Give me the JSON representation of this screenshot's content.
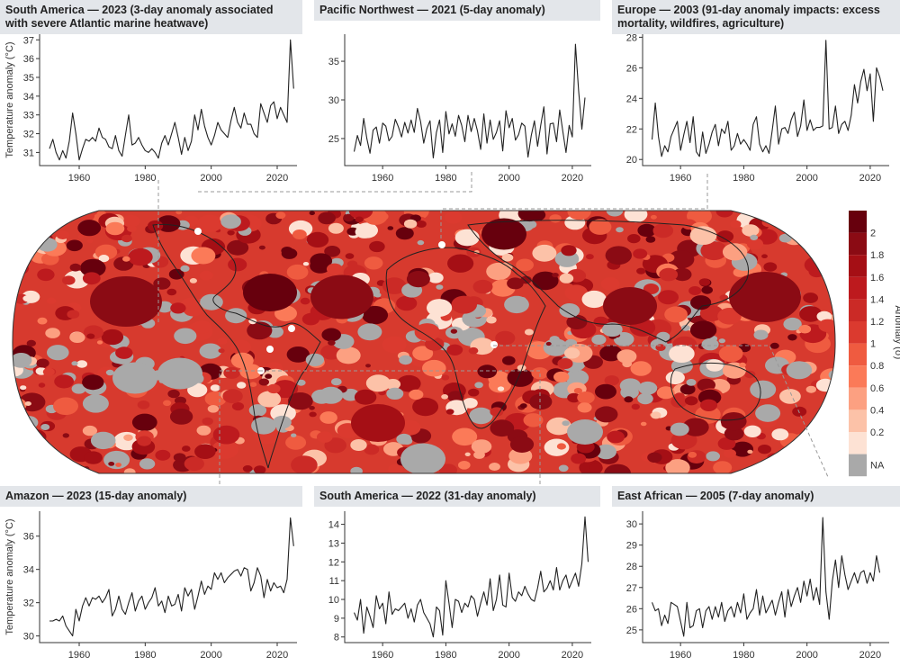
{
  "chart_data": [
    {
      "type": "line",
      "title": "South America — 2023 (3-day anomaly associated with severe Atlantic marine heatwave)",
      "ylabel": "Temperature anomaly (°C)",
      "xlim": [
        1948,
        2026
      ],
      "ylim": [
        30.3,
        37.3
      ],
      "xticks": [
        1960,
        1980,
        2000,
        2020
      ],
      "yticks": [
        31,
        32,
        33,
        34,
        35,
        36,
        37
      ],
      "x_start": 1951,
      "values": [
        31.2,
        31.7,
        31.0,
        30.6,
        31.1,
        30.7,
        31.6,
        33.1,
        32.0,
        30.6,
        31.2,
        31.7,
        31.6,
        31.8,
        31.6,
        32.3,
        31.8,
        31.7,
        31.3,
        31.2,
        31.9,
        31.1,
        30.8,
        31.9,
        33.0,
        31.4,
        31.5,
        31.8,
        31.4,
        31.1,
        31.0,
        31.2,
        31.0,
        30.7,
        31.5,
        31.9,
        31.4,
        32.0,
        32.6,
        31.8,
        30.9,
        31.8,
        31.1,
        31.6,
        33.0,
        32.2,
        33.3,
        32.4,
        31.8,
        31.4,
        31.9,
        32.6,
        32.2,
        32.0,
        31.8,
        32.7,
        33.4,
        32.6,
        32.3,
        33.1,
        32.5,
        32.5,
        32.0,
        31.8,
        33.6,
        33.1,
        32.6,
        33.5,
        33.7,
        32.8,
        33.4,
        33.0,
        32.6,
        37.0,
        34.4
      ]
    },
    {
      "type": "line",
      "title": "Pacific Northwest — 2021 (5-day anomaly)",
      "ylabel": "",
      "xlim": [
        1948,
        2026
      ],
      "ylim": [
        21.5,
        38.5
      ],
      "xticks": [
        1960,
        1980,
        2000,
        2020
      ],
      "yticks": [
        25,
        30,
        35
      ],
      "x_start": 1951,
      "values": [
        23.3,
        25.4,
        24.1,
        27.6,
        25.0,
        23.1,
        26.1,
        26.5,
        24.4,
        27.0,
        26.6,
        24.7,
        25.3,
        27.5,
        26.5,
        25.2,
        27.1,
        25.7,
        27.4,
        25.8,
        28.9,
        27.2,
        24.4,
        26.3,
        27.3,
        22.5,
        25.8,
        27.4,
        23.2,
        28.5,
        25.6,
        26.9,
        25.3,
        28.0,
        26.7,
        24.6,
        28.0,
        25.9,
        27.6,
        26.0,
        23.6,
        28.2,
        24.4,
        27.4,
        24.9,
        25.8,
        27.3,
        23.4,
        28.6,
        26.4,
        27.6,
        24.8,
        25.5,
        27.0,
        26.6,
        22.6,
        25.4,
        27.3,
        24.0,
        26.7,
        29.1,
        23.0,
        26.9,
        27.0,
        24.6,
        28.7,
        25.9,
        23.2,
        26.7,
        25.2,
        37.2,
        31.2,
        26.2,
        30.3
      ]
    },
    {
      "type": "line",
      "title": "Europe — 2003 (91-day anomaly impacts: excess mortality, wildfires, agriculture)",
      "ylabel": "",
      "xlim": [
        1948,
        2026
      ],
      "ylim": [
        19.6,
        28.2
      ],
      "xticks": [
        1960,
        1980,
        2000,
        2020
      ],
      "yticks": [
        20,
        22,
        24,
        26,
        28
      ],
      "x_start": 1951,
      "values": [
        21.3,
        23.7,
        21.5,
        20.2,
        20.9,
        20.5,
        21.5,
        22.0,
        22.5,
        20.6,
        21.6,
        22.5,
        21.1,
        22.8,
        20.5,
        20.2,
        21.8,
        20.4,
        21.0,
        21.8,
        22.3,
        20.9,
        22.0,
        21.7,
        22.5,
        20.6,
        20.9,
        21.7,
        21.0,
        21.3,
        21.0,
        20.6,
        22.3,
        22.8,
        21.0,
        20.5,
        20.9,
        20.4,
        21.9,
        23.5,
        21.0,
        22.0,
        22.1,
        21.7,
        22.6,
        23.1,
        21.5,
        22.2,
        23.9,
        21.9,
        22.6,
        21.9,
        22.1,
        22.1,
        22.2,
        27.8,
        22.0,
        22.1,
        23.5,
        21.7,
        22.3,
        22.5,
        21.9,
        22.9,
        24.9,
        23.7,
        25.1,
        25.9,
        24.5,
        25.6,
        22.5,
        26.0,
        25.4,
        24.5
      ]
    },
    {
      "type": "line",
      "title": "Amazon — 2023 (15-day anomaly)",
      "ylabel": "Temperature anomaly (°C)",
      "xlim": [
        1948,
        2026
      ],
      "ylim": [
        29.6,
        37.5
      ],
      "xticks": [
        1960,
        1980,
        2000,
        2020
      ],
      "yticks": [
        30,
        32,
        34,
        36
      ],
      "x_start": 1951,
      "values": [
        30.9,
        30.9,
        31.0,
        30.9,
        31.2,
        30.6,
        30.3,
        30.0,
        31.6,
        30.9,
        31.8,
        32.3,
        31.8,
        32.3,
        32.2,
        32.4,
        32.0,
        32.3,
        32.8,
        31.2,
        31.6,
        32.4,
        31.6,
        31.3,
        32.0,
        32.6,
        31.5,
        32.1,
        32.4,
        31.6,
        32.0,
        32.3,
        32.9,
        31.8,
        32.1,
        31.4,
        32.4,
        31.8,
        31.9,
        32.5,
        31.5,
        32.9,
        32.4,
        32.8,
        31.6,
        32.4,
        33.3,
        32.5,
        33.0,
        32.8,
        33.8,
        33.4,
        33.8,
        33.2,
        33.5,
        33.7,
        33.9,
        34.0,
        33.6,
        34.1,
        34.0,
        32.7,
        33.2,
        34.1,
        33.6,
        32.3,
        33.4,
        32.7,
        33.2,
        32.9,
        33.0,
        32.6,
        33.4,
        37.1,
        35.4
      ]
    },
    {
      "type": "line",
      "title": "South America — 2022 (31-day anomaly)",
      "ylabel": "",
      "xlim": [
        1948,
        2026
      ],
      "ylim": [
        7.7,
        14.7
      ],
      "xticks": [
        1960,
        1980,
        2000,
        2020
      ],
      "yticks": [
        8,
        9,
        10,
        11,
        12,
        13,
        14
      ],
      "x_start": 1951,
      "values": [
        9.3,
        8.9,
        10.0,
        8.2,
        9.6,
        9.1,
        8.5,
        10.2,
        9.5,
        9.8,
        8.7,
        10.4,
        9.2,
        9.5,
        9.4,
        9.6,
        9.8,
        9.0,
        9.5,
        8.8,
        9.7,
        10.0,
        9.3,
        9.0,
        8.7,
        8.0,
        9.6,
        9.4,
        8.1,
        11.0,
        9.8,
        8.5,
        10.0,
        9.9,
        9.3,
        9.8,
        9.6,
        10.2,
        10.0,
        9.1,
        9.8,
        10.4,
        9.7,
        11.1,
        9.4,
        10.0,
        11.3,
        9.7,
        9.6,
        11.4,
        10.1,
        9.9,
        10.4,
        10.2,
        10.7,
        10.3,
        10.0,
        9.9,
        10.6,
        11.5,
        10.4,
        10.6,
        11.0,
        10.5,
        11.7,
        10.5,
        11.0,
        11.3,
        10.6,
        11.0,
        11.4,
        10.7,
        11.9,
        14.4,
        12.0
      ]
    },
    {
      "type": "line",
      "title": "East African — 2005 (7-day anomaly)",
      "ylabel": "",
      "xlim": [
        1948,
        2026
      ],
      "ylim": [
        24.4,
        30.6
      ],
      "xticks": [
        1960,
        1980,
        2000,
        2020
      ],
      "yticks": [
        25,
        26,
        27,
        28,
        29,
        30
      ],
      "x_start": 1951,
      "values": [
        26.3,
        25.9,
        26.0,
        25.2,
        25.7,
        25.3,
        26.3,
        26.2,
        26.1,
        25.4,
        24.7,
        26.3,
        25.1,
        25.2,
        25.9,
        26.0,
        25.1,
        25.9,
        26.1,
        25.5,
        26.1,
        25.6,
        26.3,
        25.4,
        25.9,
        26.1,
        25.6,
        26.3,
        25.8,
        26.7,
        25.5,
        25.8,
        26.0,
        26.9,
        25.7,
        26.6,
        25.8,
        26.1,
        26.4,
        25.7,
        26.3,
        26.8,
        25.6,
        26.9,
        26.1,
        26.6,
        27.0,
        26.3,
        27.3,
        26.6,
        27.4,
        26.4,
        27.0,
        26.2,
        30.3,
        26.8,
        25.5,
        27.3,
        28.3,
        27.0,
        28.5,
        27.6,
        26.9,
        27.3,
        27.7,
        27.2,
        27.7,
        27.8,
        27.2,
        27.7,
        27.3,
        28.5,
        27.7
      ]
    }
  ],
  "map": {
    "colorbar": {
      "label": "Anomaly (σ)",
      "ticks": [
        "2",
        "1.8",
        "1.6",
        "1.4",
        "1.2",
        "1",
        "0.8",
        "0.6",
        "0.4",
        "0.2"
      ],
      "na_label": "NA",
      "colors": [
        "#67000d",
        "#8b0b14",
        "#a50f15",
        "#bd1a1e",
        "#cb2a26",
        "#db3a2f",
        "#ef5b40",
        "#fb7a58",
        "#fca081",
        "#fcc2a8",
        "#fde2d4",
        "#a9a9a9"
      ]
    }
  }
}
